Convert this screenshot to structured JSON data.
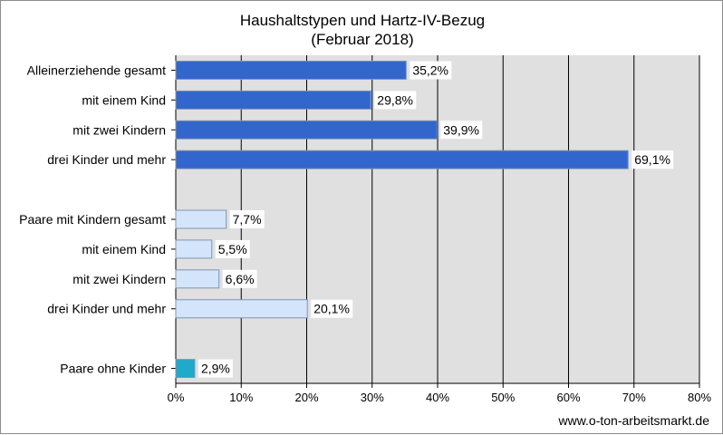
{
  "chart_data": {
    "type": "bar",
    "orientation": "horizontal",
    "title": [
      "Haushaltstypen und Hartz-IV-Bezug",
      "(Februar 2018)"
    ],
    "xlim": [
      0,
      80
    ],
    "xticks": [
      0,
      10,
      20,
      30,
      40,
      50,
      60,
      70,
      80
    ],
    "xtick_labels": [
      "0%",
      "10%",
      "20%",
      "30%",
      "40%",
      "50%",
      "60%",
      "70%",
      "80%"
    ],
    "grid": true,
    "categories": [
      "Alleinerziehende gesamt",
      "mit einem Kind",
      "mit zwei Kindern",
      "drei Kinder und mehr",
      "",
      "Paare mit Kindern gesamt",
      "mit einem Kind",
      "mit zwei Kindern",
      "drei Kinder und mehr",
      "",
      "Paare ohne Kinder"
    ],
    "values": [
      35.2,
      29.8,
      39.9,
      69.1,
      null,
      7.7,
      5.5,
      6.6,
      20.1,
      null,
      2.9
    ],
    "value_labels": [
      "35,2%",
      "29,8%",
      "39,9%",
      "69,1%",
      "",
      "7,7%",
      "5,5%",
      "6,6%",
      "20,1%",
      "",
      "2,9%"
    ],
    "bar_colors": [
      "#3366cc",
      "#3366cc",
      "#3366cc",
      "#3366cc",
      "",
      "#d4e5fb",
      "#d4e5fb",
      "#d4e5fb",
      "#d4e5fb",
      "",
      "#1eaac8"
    ],
    "plot_background": "#e0e0e0"
  },
  "source": "www.o-ton-arbeitsmarkt.de"
}
